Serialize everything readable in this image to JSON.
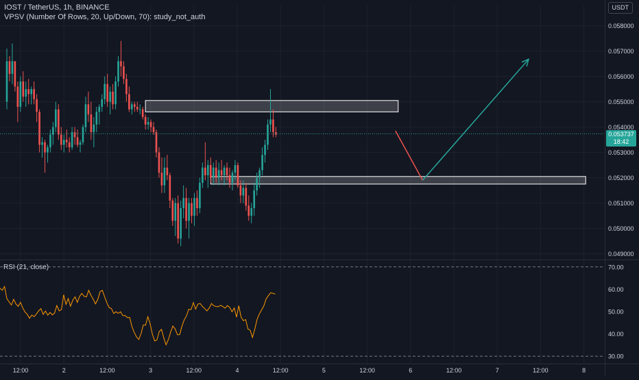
{
  "header": {
    "title": "IOST / TetherUS, 1h, BINANCE",
    "indicator": "VPSV (Number Of Rows, 20, Up/Down, 70): study_not_auth"
  },
  "currency_label": "USDT",
  "last_price": {
    "value": "0.053737",
    "countdown": "18:42"
  },
  "rsi": {
    "label": "RSI (21, close)"
  },
  "colors": {
    "background": "#131722",
    "bull": "#26a69a",
    "bear": "#ef5350",
    "rsi_line": "#ff9800",
    "grid": "#1e222d",
    "zone": "#ffffff",
    "projection_up": "#26a69a",
    "projection_down": "#ef5350"
  },
  "chart_data": [
    {
      "type": "candlestick",
      "title": "IOST / TetherUS, 1h, BINANCE",
      "ylim": [
        0.0488,
        0.0588
      ],
      "y_ticks": [
        "0.058000",
        "0.057000",
        "0.056000",
        "0.055000",
        "0.054000",
        "0.053000",
        "0.052000",
        "0.051000",
        "0.050000",
        "0.049000"
      ],
      "x_ticks": [
        "12:00",
        "2",
        "12:00",
        "3",
        "12:00",
        "4",
        "12:00",
        "5",
        "12:00",
        "6",
        "12:00",
        "7",
        "12:00",
        "8"
      ],
      "candles": [
        [
          0.055,
          0.0571,
          0.0547,
          0.0566
        ],
        [
          0.0566,
          0.0568,
          0.0558,
          0.0561
        ],
        [
          0.0561,
          0.0573,
          0.0557,
          0.0566
        ],
        [
          0.0566,
          0.0566,
          0.0554,
          0.0556
        ],
        [
          0.0556,
          0.0558,
          0.0542,
          0.0548
        ],
        [
          0.0548,
          0.056,
          0.0546,
          0.0558
        ],
        [
          0.0558,
          0.0562,
          0.055,
          0.0552
        ],
        [
          0.0552,
          0.0558,
          0.0548,
          0.0555
        ],
        [
          0.0555,
          0.0559,
          0.0549,
          0.0553
        ],
        [
          0.0553,
          0.0556,
          0.0549,
          0.0555
        ],
        [
          0.0555,
          0.0558,
          0.0549,
          0.0551
        ],
        [
          0.0551,
          0.0553,
          0.0542,
          0.0546
        ],
        [
          0.0546,
          0.0547,
          0.053,
          0.0533
        ],
        [
          0.0533,
          0.0536,
          0.0528,
          0.0534
        ],
        [
          0.0534,
          0.0535,
          0.0522,
          0.053
        ],
        [
          0.053,
          0.0533,
          0.0526,
          0.0532
        ],
        [
          0.0532,
          0.0539,
          0.053,
          0.0537
        ],
        [
          0.0537,
          0.0542,
          0.0533,
          0.054
        ],
        [
          0.054,
          0.055,
          0.0538,
          0.0547
        ],
        [
          0.0547,
          0.0549,
          0.0535,
          0.0537
        ],
        [
          0.0537,
          0.054,
          0.0531,
          0.0533
        ],
        [
          0.0533,
          0.0537,
          0.053,
          0.0535
        ],
        [
          0.0535,
          0.0539,
          0.0532,
          0.0534
        ],
        [
          0.0534,
          0.0536,
          0.053,
          0.0532
        ],
        [
          0.0532,
          0.054,
          0.0531,
          0.0538
        ],
        [
          0.0538,
          0.054,
          0.0533,
          0.0536
        ],
        [
          0.0536,
          0.0539,
          0.0532,
          0.0533
        ],
        [
          0.0533,
          0.0535,
          0.053,
          0.0534
        ],
        [
          0.0534,
          0.0541,
          0.0533,
          0.054
        ],
        [
          0.054,
          0.0552,
          0.0538,
          0.0549
        ],
        [
          0.0549,
          0.0554,
          0.0542,
          0.0545
        ],
        [
          0.0545,
          0.055,
          0.0535,
          0.0538
        ],
        [
          0.0538,
          0.0544,
          0.0532,
          0.0541
        ],
        [
          0.0541,
          0.0548,
          0.0538,
          0.0546
        ],
        [
          0.0546,
          0.0549,
          0.0541,
          0.0548
        ],
        [
          0.0548,
          0.0553,
          0.0546,
          0.0551
        ],
        [
          0.0551,
          0.056,
          0.0549,
          0.0557
        ],
        [
          0.0557,
          0.0561,
          0.0548,
          0.055
        ],
        [
          0.055,
          0.0556,
          0.0545,
          0.0554
        ],
        [
          0.0554,
          0.0557,
          0.0547,
          0.0549
        ],
        [
          0.0549,
          0.056,
          0.0547,
          0.0558
        ],
        [
          0.0558,
          0.0568,
          0.0556,
          0.0566
        ],
        [
          0.0566,
          0.0574,
          0.056,
          0.0564
        ],
        [
          0.0564,
          0.0566,
          0.0557,
          0.0559
        ],
        [
          0.0559,
          0.0561,
          0.055,
          0.0553
        ],
        [
          0.0553,
          0.0556,
          0.0546,
          0.0547
        ],
        [
          0.0547,
          0.055,
          0.0545,
          0.0549
        ],
        [
          0.0549,
          0.055,
          0.0546,
          0.0548
        ],
        [
          0.0548,
          0.055,
          0.0546,
          0.0547
        ],
        [
          0.0547,
          0.0549,
          0.0545,
          0.0547
        ],
        [
          0.0547,
          0.0548,
          0.0543,
          0.0544
        ],
        [
          0.0544,
          0.0545,
          0.0539,
          0.0541
        ],
        [
          0.0541,
          0.0544,
          0.0539,
          0.0542
        ],
        [
          0.0542,
          0.0543,
          0.0538,
          0.054
        ],
        [
          0.054,
          0.0542,
          0.0537,
          0.0538
        ],
        [
          0.0538,
          0.0539,
          0.0528,
          0.053
        ],
        [
          0.053,
          0.0532,
          0.052,
          0.0522
        ],
        [
          0.0522,
          0.0528,
          0.0514,
          0.0517
        ],
        [
          0.0517,
          0.0528,
          0.0514,
          0.0524
        ],
        [
          0.0524,
          0.0529,
          0.0519,
          0.0521
        ],
        [
          0.0521,
          0.0522,
          0.0508,
          0.0511
        ],
        [
          0.0511,
          0.0512,
          0.0501,
          0.0503
        ],
        [
          0.0503,
          0.0512,
          0.0497,
          0.051
        ],
        [
          0.051,
          0.0513,
          0.0494,
          0.0496
        ],
        [
          0.0496,
          0.0511,
          0.0493,
          0.0508
        ],
        [
          0.0508,
          0.0517,
          0.0504,
          0.0512
        ],
        [
          0.0512,
          0.0516,
          0.05,
          0.0503
        ],
        [
          0.0503,
          0.0512,
          0.0496,
          0.051
        ],
        [
          0.051,
          0.0512,
          0.0502,
          0.0505
        ],
        [
          0.0505,
          0.0514,
          0.0501,
          0.0512
        ],
        [
          0.0512,
          0.0515,
          0.0505,
          0.0508
        ],
        [
          0.0508,
          0.052,
          0.0506,
          0.0518
        ],
        [
          0.0518,
          0.0526,
          0.0516,
          0.0524
        ],
        [
          0.0524,
          0.0534,
          0.0519,
          0.0521
        ],
        [
          0.0521,
          0.0527,
          0.0516,
          0.0525
        ],
        [
          0.0525,
          0.0528,
          0.0518,
          0.052
        ],
        [
          0.052,
          0.0526,
          0.0517,
          0.0524
        ],
        [
          0.0524,
          0.0527,
          0.0518,
          0.052
        ],
        [
          0.052,
          0.0526,
          0.0517,
          0.0523
        ],
        [
          0.0523,
          0.0527,
          0.0519,
          0.0521
        ],
        [
          0.0521,
          0.0525,
          0.0517,
          0.0524
        ],
        [
          0.0524,
          0.0526,
          0.0519,
          0.0521
        ],
        [
          0.0521,
          0.0524,
          0.0516,
          0.0518
        ],
        [
          0.0518,
          0.0523,
          0.0515,
          0.0522
        ],
        [
          0.0522,
          0.0527,
          0.0519,
          0.0525
        ],
        [
          0.0525,
          0.0526,
          0.0516,
          0.0517
        ],
        [
          0.0517,
          0.0519,
          0.051,
          0.0513
        ],
        [
          0.0513,
          0.0519,
          0.051,
          0.0516
        ],
        [
          0.0516,
          0.0518,
          0.0507,
          0.0509
        ],
        [
          0.0509,
          0.0513,
          0.0503,
          0.0505
        ],
        [
          0.0505,
          0.051,
          0.0502,
          0.0508
        ],
        [
          0.0508,
          0.0518,
          0.0505,
          0.0515
        ],
        [
          0.0515,
          0.0522,
          0.0513,
          0.052
        ],
        [
          0.052,
          0.0524,
          0.0516,
          0.0523
        ],
        [
          0.0523,
          0.0532,
          0.0521,
          0.0529
        ],
        [
          0.0529,
          0.0535,
          0.0526,
          0.0533
        ],
        [
          0.0533,
          0.0543,
          0.0531,
          0.0541
        ],
        [
          0.0541,
          0.0555,
          0.0538,
          0.0543
        ],
        [
          0.0543,
          0.0547,
          0.0536,
          0.0538
        ],
        [
          0.0538,
          0.054,
          0.0536,
          0.0537
        ]
      ],
      "zones": [
        {
          "x1": 51,
          "x2": 144,
          "y1": 0.0546,
          "y2": 0.05505
        },
        {
          "x1": 75,
          "x2": 213,
          "y1": 0.05175,
          "y2": 0.05205
        }
      ],
      "projection": {
        "down": [
          [
            143,
            0.05385
          ],
          [
            153,
            0.0519
          ]
        ],
        "up": [
          [
            153,
            0.0519
          ],
          [
            192,
            0.05668
          ]
        ]
      },
      "x_span": [
        0,
        220
      ]
    },
    {
      "type": "line",
      "title": "RSI (21, close)",
      "ylim": [
        27,
        73
      ],
      "y_ticks": [
        "70.00",
        "60.00",
        "50.00",
        "40.00",
        "30.00"
      ],
      "levels": [
        70,
        30
      ],
      "values": [
        60.5,
        59.5,
        61.2,
        55.8,
        54.3,
        52.9,
        55.5,
        53.4,
        52.3,
        54.1,
        51.6,
        49.8,
        48.7,
        47.0,
        48.4,
        47.7,
        48.9,
        50.3,
        51.3,
        48.7,
        50.2,
        48.4,
        49.6,
        48.5,
        49.3,
        52.7,
        50.3,
        50.9,
        57.5,
        53.2,
        55.8,
        52.4,
        55.1,
        56.6,
        54.1,
        56.8,
        58.1,
        56.8,
        56.6,
        59.5,
        57.2,
        55.5,
        53.4,
        55.4,
        58.9,
        59.5,
        56.6,
        53.9,
        51.8,
        51.3,
        49.1,
        49.9,
        49.2,
        49.9,
        48.2,
        48.2,
        47.3,
        47.4,
        43.3,
        40.7,
        38.7,
        37.5,
        40.1,
        44.0,
        43.9,
        47.7,
        44.6,
        39.8,
        36.8,
        37.3,
        41.0,
        42.0,
        38.3,
        35.1,
        37.4,
        40.7,
        43.5,
        42.2,
        39.6,
        39.7,
        43.5,
        46.3,
        48.1,
        51.0,
        50.9,
        54.0,
        51.1,
        53.3,
        53.6,
        52.3,
        51.3,
        50.3,
        51.6,
        53.6,
        52.6,
        52.2,
        52.2,
        52.8,
        52.2,
        51.5,
        52.7,
        51.8,
        49.9,
        51.6,
        47.5,
        52.6,
        47.5,
        45.9,
        46.4,
        42.2,
        41.6,
        38.4,
        41.9,
        46.4,
        48.9,
        50.7,
        52.5,
        55.6,
        57.1,
        58.4,
        58.2,
        57.8
      ]
    }
  ]
}
